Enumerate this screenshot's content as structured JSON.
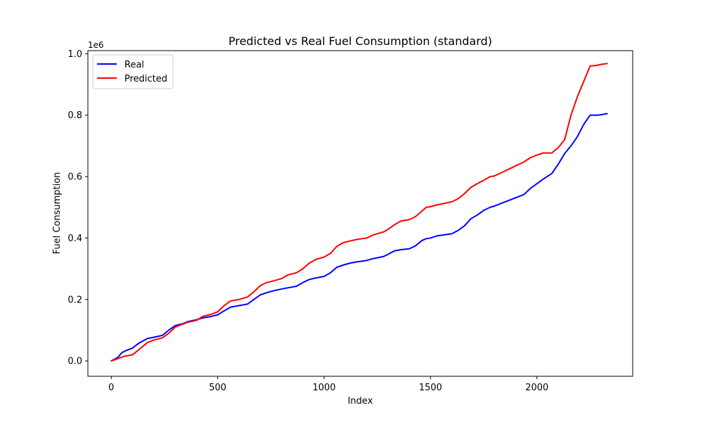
{
  "chart_data": {
    "type": "line",
    "title": "Predicted vs Real Fuel Consumption (standard)",
    "xlabel": "Index",
    "ylabel": "Fuel Consumption",
    "y_offset_label": "1e6",
    "xlim": [
      -110,
      2450
    ],
    "ylim": [
      -0.05,
      1.01
    ],
    "xticks": [
      0,
      500,
      1000,
      1500,
      2000
    ],
    "xtick_labels": [
      "0",
      "500",
      "1000",
      "1500",
      "2000"
    ],
    "yticks": [
      0.0,
      0.2,
      0.4,
      0.6,
      0.8,
      1.0
    ],
    "ytick_labels": [
      "0.0",
      "0.2",
      "0.4",
      "0.6",
      "0.8",
      "1.0"
    ],
    "grid": false,
    "legend_position": "top-left",
    "series": [
      {
        "name": "Real",
        "color": "#0000ff",
        "x": [
          0,
          30,
          50,
          70,
          100,
          130,
          170,
          200,
          240,
          270,
          300,
          330,
          360,
          400,
          430,
          470,
          500,
          530,
          560,
          600,
          640,
          670,
          700,
          730,
          760,
          800,
          830,
          870,
          900,
          930,
          960,
          1000,
          1030,
          1060,
          1090,
          1120,
          1150,
          1200,
          1230,
          1280,
          1300,
          1330,
          1360,
          1400,
          1430,
          1460,
          1480,
          1500,
          1530,
          1560,
          1600,
          1630,
          1660,
          1690,
          1720,
          1750,
          1780,
          1800,
          1840,
          1870,
          1900,
          1940,
          1970,
          2000,
          2030,
          2070,
          2100,
          2130,
          2160,
          2190,
          2220,
          2250,
          2280,
          2300,
          2330
        ],
        "y": [
          0.0,
          0.011,
          0.027,
          0.034,
          0.042,
          0.058,
          0.073,
          0.077,
          0.083,
          0.1,
          0.115,
          0.12,
          0.128,
          0.134,
          0.14,
          0.145,
          0.15,
          0.163,
          0.175,
          0.18,
          0.185,
          0.2,
          0.215,
          0.222,
          0.228,
          0.234,
          0.238,
          0.243,
          0.255,
          0.265,
          0.27,
          0.275,
          0.287,
          0.305,
          0.312,
          0.318,
          0.322,
          0.327,
          0.333,
          0.34,
          0.347,
          0.358,
          0.362,
          0.365,
          0.375,
          0.392,
          0.398,
          0.4,
          0.407,
          0.41,
          0.414,
          0.425,
          0.44,
          0.463,
          0.475,
          0.49,
          0.5,
          0.504,
          0.515,
          0.523,
          0.531,
          0.542,
          0.562,
          0.577,
          0.592,
          0.61,
          0.64,
          0.675,
          0.7,
          0.73,
          0.77,
          0.8,
          0.8,
          0.801,
          0.805
        ]
      },
      {
        "name": "Predicted",
        "color": "#ff0000",
        "x": [
          0,
          30,
          60,
          100,
          130,
          170,
          200,
          240,
          270,
          300,
          330,
          360,
          400,
          430,
          470,
          500,
          530,
          560,
          600,
          640,
          670,
          700,
          730,
          760,
          800,
          830,
          870,
          900,
          930,
          960,
          1000,
          1030,
          1060,
          1090,
          1120,
          1150,
          1200,
          1230,
          1280,
          1300,
          1330,
          1360,
          1400,
          1430,
          1460,
          1480,
          1500,
          1530,
          1560,
          1600,
          1630,
          1660,
          1690,
          1720,
          1750,
          1780,
          1800,
          1840,
          1870,
          1900,
          1940,
          1970,
          2000,
          2030,
          2070,
          2100,
          2130,
          2160,
          2190,
          2220,
          2250,
          2280,
          2300,
          2330
        ],
        "y": [
          0.0,
          0.007,
          0.015,
          0.02,
          0.037,
          0.06,
          0.068,
          0.075,
          0.09,
          0.11,
          0.118,
          0.126,
          0.132,
          0.145,
          0.152,
          0.16,
          0.18,
          0.195,
          0.2,
          0.208,
          0.225,
          0.245,
          0.255,
          0.26,
          0.268,
          0.28,
          0.287,
          0.3,
          0.318,
          0.33,
          0.338,
          0.35,
          0.373,
          0.385,
          0.39,
          0.395,
          0.4,
          0.41,
          0.42,
          0.428,
          0.443,
          0.455,
          0.46,
          0.47,
          0.488,
          0.5,
          0.502,
          0.508,
          0.512,
          0.518,
          0.528,
          0.545,
          0.565,
          0.577,
          0.588,
          0.6,
          0.602,
          0.615,
          0.625,
          0.635,
          0.648,
          0.662,
          0.67,
          0.677,
          0.677,
          0.694,
          0.72,
          0.8,
          0.86,
          0.91,
          0.96,
          0.962,
          0.965,
          0.968
        ]
      }
    ]
  }
}
